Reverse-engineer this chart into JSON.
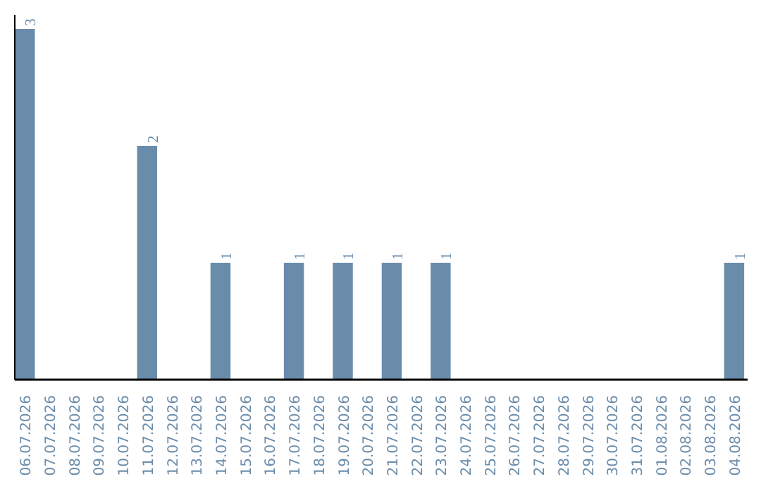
{
  "chart_data": {
    "type": "bar",
    "categories": [
      "06.07.2026",
      "07.07.2026",
      "08.07.2026",
      "09.07.2026",
      "10.07.2026",
      "11.07.2026",
      "12.07.2026",
      "13.07.2026",
      "14.07.2026",
      "15.07.2026",
      "16.07.2026",
      "17.07.2026",
      "18.07.2026",
      "19.07.2026",
      "20.07.2026",
      "21.07.2026",
      "22.07.2026",
      "23.07.2026",
      "24.07.2026",
      "25.07.2026",
      "26.07.2026",
      "27.07.2026",
      "28.07.2026",
      "29.07.2026",
      "30.07.2026",
      "31.07.2026",
      "01.08.2026",
      "02.08.2026",
      "03.08.2026",
      "04.08.2026"
    ],
    "values": [
      3,
      0,
      0,
      0,
      0,
      2,
      0,
      0,
      1,
      0,
      0,
      1,
      0,
      1,
      0,
      1,
      0,
      1,
      0,
      0,
      0,
      0,
      0,
      0,
      0,
      0,
      0,
      0,
      0,
      1
    ],
    "value_labels": [
      "3",
      null,
      null,
      null,
      null,
      "2",
      null,
      null,
      "1",
      null,
      null,
      "1",
      null,
      "1",
      null,
      "1",
      null,
      "1",
      null,
      null,
      null,
      null,
      null,
      null,
      null,
      null,
      null,
      null,
      null,
      "1"
    ],
    "color": "#6a8cab",
    "grid": false
  }
}
